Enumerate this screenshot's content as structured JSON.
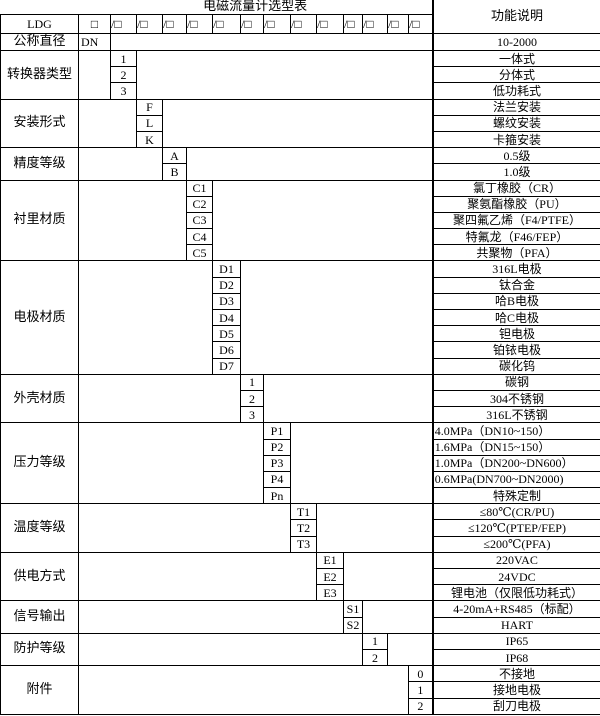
{
  "title": "电磁流量计选型表",
  "function_header": "功能说明",
  "model_prefix": "LDG",
  "box_symbol": "□",
  "slot_symbols": [
    "/□",
    "/□",
    "/□",
    "/□",
    "/□",
    "/□",
    "/□",
    "/□",
    "/□",
    "/□",
    "/□",
    "/□",
    "/□"
  ],
  "nominal_diameter": {
    "label": "公称直径",
    "code": "DN",
    "description": "10-2000"
  },
  "groups": [
    {
      "label": "转换器类型",
      "column": 0,
      "options": [
        {
          "code": "1",
          "description": "一体式"
        },
        {
          "code": "2",
          "description": "分体式"
        },
        {
          "code": "3",
          "description": "低功耗式"
        }
      ]
    },
    {
      "label": "安装形式",
      "column": 1,
      "options": [
        {
          "code": "F",
          "description": "法兰安装"
        },
        {
          "code": "L",
          "description": "螺纹安装"
        },
        {
          "code": "K",
          "description": "卡箍安装"
        }
      ]
    },
    {
      "label": "精度等级",
      "column": 2,
      "options": [
        {
          "code": "A",
          "description": "0.5级"
        },
        {
          "code": "B",
          "description": "1.0级"
        }
      ]
    },
    {
      "label": "衬里材质",
      "column": 3,
      "options": [
        {
          "code": "C1",
          "description": "氯丁橡胶（CR）"
        },
        {
          "code": "C2",
          "description": "聚氨酯橡胶（PU）"
        },
        {
          "code": "C3",
          "description": "聚四氟乙烯（F4/PTFE）"
        },
        {
          "code": "C4",
          "description": "特氟龙（F46/FEP）"
        },
        {
          "code": "C5",
          "description": "共聚物（PFA）"
        }
      ]
    },
    {
      "label": "电极材质",
      "column": 4,
      "options": [
        {
          "code": "D1",
          "description": "316L电极"
        },
        {
          "code": "D2",
          "description": "钛合金"
        },
        {
          "code": "D3",
          "description": "哈B电极"
        },
        {
          "code": "D4",
          "description": "哈C电极"
        },
        {
          "code": "D5",
          "description": "钽电极"
        },
        {
          "code": "D6",
          "description": "铂铱电极"
        },
        {
          "code": "D7",
          "description": "碳化钨"
        }
      ]
    },
    {
      "label": "外壳材质",
      "column": 5,
      "options": [
        {
          "code": "1",
          "description": "碳钢"
        },
        {
          "code": "2",
          "description": "304不锈钢"
        },
        {
          "code": "3",
          "description": "316L不锈钢"
        }
      ]
    },
    {
      "label": "压力等级",
      "column": 6,
      "options": [
        {
          "code": "P1",
          "description": "4.0MPa（DN10~150）",
          "align": "left"
        },
        {
          "code": "P2",
          "description": "1.6MPa（DN15~150）",
          "align": "left"
        },
        {
          "code": "P3",
          "description": "1.0MPa（DN200~DN600）",
          "align": "left"
        },
        {
          "code": "P4",
          "description": "0.6MPa(DN700~DN2000)",
          "align": "left"
        },
        {
          "code": "Pn",
          "description": "特殊定制"
        }
      ]
    },
    {
      "label": "温度等级",
      "column": 7,
      "options": [
        {
          "code": "T1",
          "description": "≤80℃(CR/PU)"
        },
        {
          "code": "T2",
          "description": "≤120℃(PTEP/FEP)"
        },
        {
          "code": "T3",
          "description": "≤200℃(PFA)"
        }
      ]
    },
    {
      "label": "供电方式",
      "column": 8,
      "options": [
        {
          "code": "E1",
          "description": "220VAC"
        },
        {
          "code": "E2",
          "description": "24VDC"
        },
        {
          "code": "E3",
          "description": "锂电池（仅限低功耗式）"
        }
      ]
    },
    {
      "label": "信号输出",
      "column": 9,
      "options": [
        {
          "code": "S1",
          "description": "4-20mA+RS485（标配）"
        },
        {
          "code": "S2",
          "description": "HART"
        }
      ]
    },
    {
      "label": "防护等级",
      "column": 10,
      "options": [
        {
          "code": "1",
          "description": "IP65"
        },
        {
          "code": "2",
          "description": "IP68"
        }
      ]
    },
    {
      "label": "附件",
      "column": 12,
      "options": [
        {
          "code": "0",
          "description": "不接地"
        },
        {
          "code": "1",
          "description": "接地电极"
        },
        {
          "code": "2",
          "description": "刮刀电极"
        }
      ]
    }
  ]
}
